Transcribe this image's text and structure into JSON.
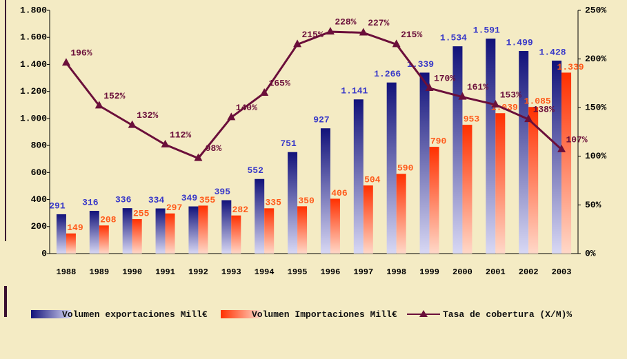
{
  "chart_data": {
    "type": "bar_line",
    "categories": [
      "1988",
      "1989",
      "1990",
      "1991",
      "1992",
      "1993",
      "1994",
      "1995",
      "1996",
      "1997",
      "1998",
      "1999",
      "2000",
      "2001",
      "2002",
      "2003"
    ],
    "series": [
      {
        "name": "Volumen exportaciones Mill€",
        "color": "#1a1a8c",
        "type": "bar",
        "values": [
          291,
          316,
          336,
          334,
          349,
          395,
          552,
          751,
          927,
          1141,
          1266,
          1339,
          1534,
          1591,
          1499,
          1428
        ],
        "value_labels": [
          "291",
          "316",
          "336",
          "334",
          "349",
          "395",
          "552",
          "751",
          "927",
          "1.141",
          "1.266",
          "1.339",
          "1.534",
          "1.591",
          "1.499",
          "1.428"
        ]
      },
      {
        "name": "Volumen Importaciones Mill€",
        "color": "#ff4010",
        "type": "bar",
        "values": [
          149,
          208,
          255,
          297,
          355,
          282,
          335,
          350,
          406,
          504,
          590,
          790,
          953,
          1039,
          1085,
          1339
        ],
        "value_labels": [
          "149",
          "208",
          "255",
          "297",
          "355",
          "282",
          "335",
          "350",
          "406",
          "504",
          "590",
          "790",
          "953",
          "1.039",
          "1.085",
          "1.339"
        ]
      },
      {
        "name": "Tasa de cobertura (X/M)%",
        "color": "#6b0f3a",
        "type": "line",
        "axis": "y2",
        "values": [
          196,
          152,
          132,
          112,
          98,
          140,
          165,
          215,
          228,
          227,
          215,
          170,
          161,
          153,
          138,
          107
        ],
        "value_labels": [
          "196%",
          "152%",
          "132%",
          "112%",
          "98%",
          "140%",
          "165%",
          "215%",
          "228%",
          "227%",
          "215%",
          "170%",
          "161%",
          "153%",
          "138%",
          "107%"
        ]
      }
    ],
    "ylim": [
      0,
      1800
    ],
    "yticks": [
      0,
      200,
      400,
      600,
      800,
      {
        "value": 1000,
        "label": "1.000"
      },
      {
        "value": 1200,
        "label": "1.200"
      },
      {
        "value": 1400,
        "label": "1.400"
      },
      {
        "value": 1600,
        "label": "1.600"
      },
      {
        "value": 1800,
        "label": "1.800"
      }
    ],
    "y2lim": [
      0,
      250
    ],
    "y2ticks": [
      {
        "value": 0,
        "label": "0%"
      },
      {
        "value": 50,
        "label": "50%"
      },
      {
        "value": 100,
        "label": "100%"
      },
      {
        "value": 150,
        "label": "150%"
      },
      {
        "value": 200,
        "label": "200%"
      },
      {
        "value": 250,
        "label": "250%"
      }
    ]
  }
}
